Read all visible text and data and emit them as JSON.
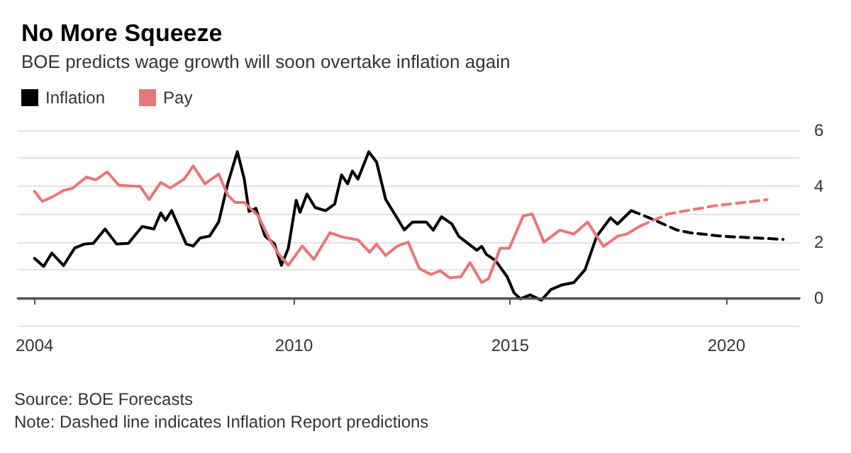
{
  "chart_data": {
    "type": "line",
    "title": "No More Squeeze",
    "subtitle": "BOE predicts wage growth will soon overtake inflation again",
    "annotations": [
      "Source: BOE Forecasts",
      "Note: Dashed line indicates Inflation Report predictions"
    ],
    "xlim": [
      2003.6,
      2021.7
    ],
    "xticks": [
      2004,
      2010,
      2015,
      2020
    ],
    "ylim": [
      -1,
      6
    ],
    "yticks": [
      {
        "value": -1,
        "label": null
      },
      0,
      {
        "value": 1,
        "label": null
      },
      2,
      {
        "value": 3,
        "label": null
      },
      4,
      {
        "value": 5,
        "label": null
      },
      6
    ],
    "grid": "y",
    "legend": "top left",
    "marker": "none",
    "ref_lines": [
      {
        "axis": "y",
        "value": 0,
        "color": "#555555"
      }
    ],
    "series": [
      {
        "name": "Inflation",
        "color": "#000000",
        "line_style": "solid",
        "x": [
          2004.0,
          2004.21,
          2004.4,
          2004.67,
          2004.93,
          2005.15,
          2005.36,
          2005.63,
          2005.9,
          2006.17,
          2006.49,
          2006.76,
          2006.92,
          2007.03,
          2007.17,
          2007.51,
          2007.67,
          2007.83,
          2008.05,
          2008.26,
          2008.47,
          2008.69,
          2008.85,
          2008.96,
          2009.12,
          2009.33,
          2009.55,
          2009.71,
          2009.87,
          2010.05,
          2010.14,
          2010.3,
          2010.49,
          2010.73,
          2010.94,
          2011.1,
          2011.24,
          2011.35,
          2011.48,
          2011.73,
          2011.91,
          2012.12,
          2012.34,
          2012.55,
          2012.74,
          2013.06,
          2013.22,
          2013.41,
          2013.65,
          2013.81,
          2014.23,
          2014.34,
          2014.45,
          2014.66,
          2014.93,
          2015.09,
          2015.24,
          2015.46,
          2015.72,
          2015.94,
          2016.2,
          2016.47,
          2016.73,
          2017.0,
          2017.32,
          2017.48,
          2017.8
        ],
        "values": [
          1.41,
          1.12,
          1.6,
          1.15,
          1.78,
          1.92,
          1.95,
          2.46,
          1.92,
          1.95,
          2.55,
          2.46,
          3.04,
          2.77,
          3.12,
          1.92,
          1.85,
          2.14,
          2.21,
          2.72,
          4.1,
          5.23,
          4.25,
          3.09,
          3.2,
          2.21,
          1.92,
          1.16,
          1.78,
          3.49,
          3.06,
          3.71,
          3.23,
          3.12,
          3.35,
          4.4,
          4.08,
          4.54,
          4.25,
          5.23,
          4.86,
          3.52,
          2.97,
          2.43,
          2.71,
          2.71,
          2.42,
          2.9,
          2.64,
          2.2,
          1.7,
          1.84,
          1.55,
          1.33,
          0.75,
          0.17,
          -0.04,
          0.1,
          -0.09,
          0.29,
          0.46,
          0.54,
          1.0,
          2.2,
          2.86,
          2.64,
          3.12
        ]
      },
      {
        "color": "#000000",
        "line_style": "dashed",
        "x": [
          2017.8,
          2018.22,
          2018.86,
          2019.18,
          2019.93,
          2021.31
        ],
        "values": [
          3.12,
          2.86,
          2.42,
          2.32,
          2.2,
          2.09
        ]
      },
      {
        "name": "Pay",
        "color": "#e8767a",
        "line_style": "solid",
        "x": [
          2004.0,
          2004.18,
          2004.4,
          2004.67,
          2004.88,
          2005.2,
          2005.42,
          2005.68,
          2005.95,
          2006.22,
          2006.44,
          2006.65,
          2006.92,
          2007.14,
          2007.46,
          2007.67,
          2007.94,
          2008.26,
          2008.47,
          2008.64,
          2008.85,
          2009.17,
          2009.44,
          2009.65,
          2009.87,
          2010.19,
          2010.46,
          2010.83,
          2011.1,
          2011.48,
          2011.75,
          2011.91,
          2012.12,
          2012.39,
          2012.64,
          2012.9,
          2013.17,
          2013.38,
          2013.6,
          2013.86,
          2014.07,
          2014.34,
          2014.5,
          2014.77,
          2014.98,
          2015.3,
          2015.51,
          2015.78,
          2016.15,
          2016.47,
          2016.79,
          2017.0,
          2017.16,
          2017.48,
          2017.69,
          2018.01
        ],
        "values": [
          3.81,
          3.45,
          3.6,
          3.84,
          3.92,
          4.32,
          4.22,
          4.51,
          4.03,
          4.0,
          3.99,
          3.52,
          4.13,
          3.93,
          4.25,
          4.72,
          4.08,
          4.43,
          3.67,
          3.41,
          3.41,
          2.94,
          2.07,
          1.56,
          1.16,
          1.85,
          1.37,
          2.33,
          2.18,
          2.07,
          1.63,
          1.92,
          1.51,
          1.85,
          1.99,
          1.04,
          0.83,
          0.97,
          0.71,
          0.75,
          1.26,
          0.54,
          0.68,
          1.77,
          1.77,
          2.93,
          3.0,
          1.99,
          2.42,
          2.28,
          2.71,
          2.2,
          1.84,
          2.2,
          2.28,
          2.57
        ]
      },
      {
        "color": "#e8767a",
        "line_style": "dashed",
        "x": [
          2018.01,
          2018.65,
          2019.71,
          2020.94
        ],
        "values": [
          2.57,
          3.0,
          3.29,
          3.51
        ]
      }
    ]
  }
}
